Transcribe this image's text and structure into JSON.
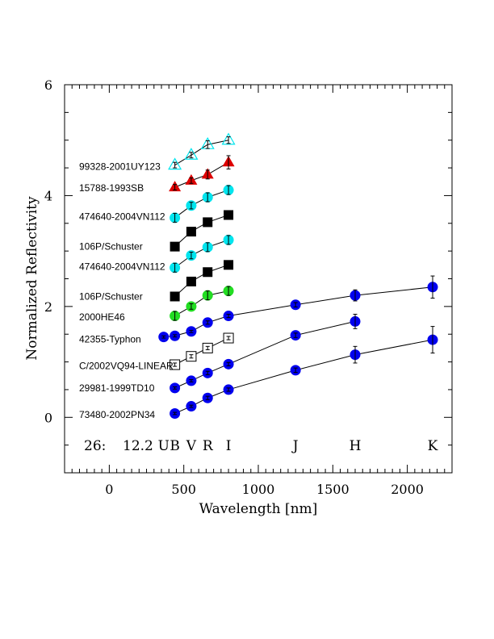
{
  "chart_data": {
    "type": "scatter",
    "xlabel": "Wavelength [nm]",
    "ylabel": "Normalized Reflectivity",
    "xlim": [
      -300,
      2300
    ],
    "ylim": [
      -1,
      6
    ],
    "x_ticks": [
      0,
      500,
      1000,
      1500,
      2000
    ],
    "y_ticks": [
      0,
      2,
      4,
      6
    ],
    "grid": false,
    "corner_label_index": "26:",
    "corner_label_value": "12.2",
    "band_labels": [
      {
        "label": "U",
        "x": 365
      },
      {
        "label": "B",
        "x": 440
      },
      {
        "label": "V",
        "x": 550
      },
      {
        "label": "R",
        "x": 660
      },
      {
        "label": "I",
        "x": 800
      },
      {
        "label": "J",
        "x": 1250
      },
      {
        "label": "H",
        "x": 1650
      },
      {
        "label": "K",
        "x": 2170
      }
    ],
    "series": [
      {
        "name": "73480-2002PN34",
        "marker": "circle",
        "color": "#0000ee",
        "label_y": 0.05,
        "points": [
          [
            440,
            0.07,
            0.02
          ],
          [
            550,
            0.2,
            0.02
          ],
          [
            660,
            0.35,
            0.03
          ],
          [
            800,
            0.5,
            0.03
          ],
          [
            1250,
            0.85,
            0.04
          ],
          [
            1650,
            1.13,
            0.15
          ],
          [
            2170,
            1.4,
            0.24
          ]
        ]
      },
      {
        "name": "29981-1999TD10",
        "marker": "circle",
        "color": "#0000ee",
        "label_y": 0.53,
        "points": [
          [
            440,
            0.53,
            0.02
          ],
          [
            550,
            0.66,
            0.02
          ],
          [
            660,
            0.8,
            0.03
          ],
          [
            800,
            0.96,
            0.03
          ],
          [
            1250,
            1.48,
            0.04
          ],
          [
            1650,
            1.73,
            0.13
          ]
        ]
      },
      {
        "name": "C/2002VQ94-LINEAR",
        "marker": "open-square",
        "color": "#000000",
        "label_y": 0.93,
        "points": [
          [
            440,
            0.95,
            0.03
          ],
          [
            550,
            1.1,
            0.03
          ],
          [
            660,
            1.25,
            0.03
          ],
          [
            800,
            1.43,
            0.03
          ]
        ]
      },
      {
        "name": "42355-Typhon",
        "marker": "circle",
        "color": "#0000ee",
        "label_y": 1.41,
        "points": [
          [
            365,
            1.45,
            0.02
          ],
          [
            440,
            1.47,
            0.02
          ],
          [
            550,
            1.55,
            0.02
          ],
          [
            660,
            1.71,
            0.03
          ],
          [
            800,
            1.83,
            0.03
          ],
          [
            1250,
            2.03,
            0.04
          ],
          [
            1650,
            2.2,
            0.1
          ],
          [
            2170,
            2.35,
            0.2
          ]
        ]
      },
      {
        "name": "2000HE46",
        "marker": "circle",
        "color": "#22dd22",
        "label_y": 1.81,
        "points": [
          [
            440,
            1.83,
            0.08
          ],
          [
            550,
            2.0,
            0.05
          ],
          [
            660,
            2.2,
            0.08
          ],
          [
            800,
            2.28,
            0.08
          ]
        ]
      },
      {
        "name": "106P/Schuster",
        "marker": "square",
        "color": "#000000",
        "label_y": 2.18,
        "points": [
          [
            440,
            2.18,
            0.03
          ],
          [
            550,
            2.45,
            0.03
          ],
          [
            660,
            2.62,
            0.03
          ],
          [
            800,
            2.75,
            0.03
          ]
        ]
      },
      {
        "name": "474640-2004VN112",
        "marker": "circle",
        "color": "#00e5ee",
        "label_y": 2.72,
        "points": [
          [
            440,
            2.7,
            0.08
          ],
          [
            550,
            2.92,
            0.06
          ],
          [
            660,
            3.07,
            0.08
          ],
          [
            800,
            3.2,
            0.08
          ]
        ]
      },
      {
        "name": "106P/Schuster",
        "marker": "square",
        "color": "#000000",
        "label_y": 3.08,
        "points": [
          [
            440,
            3.08,
            0.03
          ],
          [
            550,
            3.35,
            0.03
          ],
          [
            660,
            3.52,
            0.03
          ],
          [
            800,
            3.65,
            0.03
          ]
        ]
      },
      {
        "name": "474640-2004VN112",
        "marker": "circle",
        "color": "#00e5ee",
        "label_y": 3.62,
        "points": [
          [
            440,
            3.6,
            0.08
          ],
          [
            550,
            3.82,
            0.06
          ],
          [
            660,
            3.97,
            0.08
          ],
          [
            800,
            4.1,
            0.08
          ]
        ]
      },
      {
        "name": "15788-1993SB",
        "marker": "triangle",
        "color": "#dd0000",
        "label_y": 4.14,
        "points": [
          [
            440,
            4.15,
            0.05
          ],
          [
            550,
            4.27,
            0.05
          ],
          [
            660,
            4.38,
            0.08
          ],
          [
            800,
            4.6,
            0.12
          ]
        ]
      },
      {
        "name": "99328-2001UY123",
        "marker": "open-triangle",
        "color": "#00e5ee",
        "label_y": 4.52,
        "points": [
          [
            440,
            4.55,
            0.05
          ],
          [
            550,
            4.73,
            0.05
          ],
          [
            660,
            4.92,
            0.07
          ],
          [
            800,
            5.0,
            0.06
          ]
        ]
      }
    ]
  }
}
